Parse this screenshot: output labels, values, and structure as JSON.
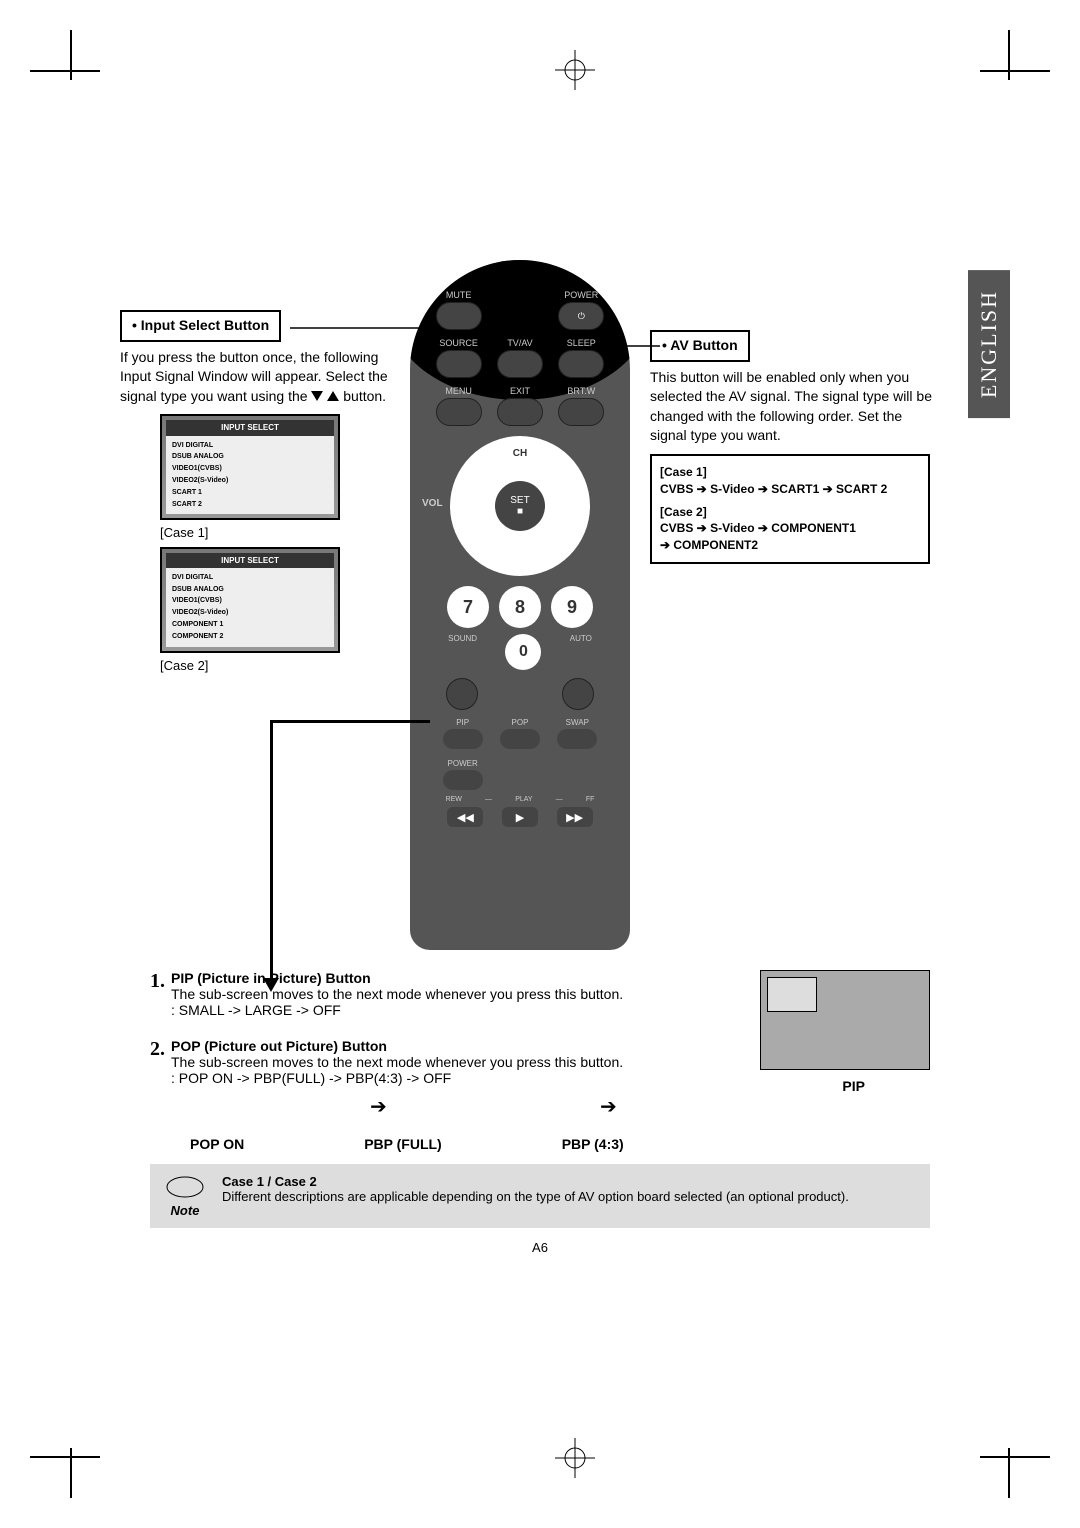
{
  "page": {
    "language_tab": "ENGLISH",
    "page_number": "A6"
  },
  "left_callout": {
    "title": "• Input Select Button",
    "body1": "If you press the button once, the following Input Signal Window will appear. Select the signal type you want using the",
    "body2": "button.",
    "case1_label": "[Case 1]",
    "case2_label": "[Case 2]",
    "osd_title": "INPUT SELECT",
    "osd1_items": [
      "DVI DIGITAL",
      "DSUB ANALOG",
      "VIDEO1(CVBS)",
      "VIDEO2(S-Video)",
      "SCART 1",
      "SCART 2"
    ],
    "osd2_items": [
      "DVI DIGITAL",
      "DSUB ANALOG",
      "VIDEO1(CVBS)",
      "VIDEO2(S-Video)",
      "COMPONENT 1",
      "COMPONENT 2"
    ]
  },
  "right_callout": {
    "title": "• AV Button",
    "body": "This button will be enabled only when you selected the AV signal. The signal type will be changed with the following order. Set the signal type you want.",
    "case1_label": "[Case 1]",
    "case1_seq": [
      "CVBS",
      "S-Video",
      "SCART1",
      "SCART 2"
    ],
    "case2_label": "[Case 2]",
    "case2_seq": [
      "CVBS",
      "S-Video",
      "COMPONENT1",
      "COMPONENT2"
    ]
  },
  "remote": {
    "row1": [
      "MUTE",
      "",
      "POWER"
    ],
    "row2": [
      "SOURCE",
      "TV/AV",
      "SLEEP"
    ],
    "row3": [
      "MENU",
      "EXIT",
      "BRT.W"
    ],
    "dpad_top": "CH",
    "dpad_center_top": "SET",
    "dpad_center_bot": "■",
    "dpad_left": "VOL",
    "keys": [
      "7",
      "8",
      "9",
      "0"
    ],
    "sound": "SOUND",
    "auto": "AUTO",
    "pip_row": [
      "PIP",
      "POP",
      "SWAP"
    ],
    "vcr_labels": [
      "REW",
      "PLAY",
      "FF"
    ],
    "power_lbl": "POWER"
  },
  "pip_section": {
    "item1_num": "1.",
    "item1_title": "PIP (Picture in Picture) Button",
    "item1_body": "The sub-screen moves to the next mode whenever you press this button.",
    "item1_seq": ": SMALL -> LARGE -> OFF",
    "item2_num": "2.",
    "item2_title": "POP (Picture out Picture) Button",
    "item2_body": "The sub-screen moves to the next mode whenever you press this button.",
    "item2_seq": ": POP ON -> PBP(FULL) -> PBP(4:3) -> OFF",
    "diagram_label": "PIP",
    "modes": [
      "POP ON",
      "PBP (FULL)",
      "PBP (4:3)"
    ]
  },
  "note": {
    "label": "Note",
    "title": "Case 1 / Case 2",
    "body": "Different descriptions are applicable depending on the type of AV option board selected (an optional product)."
  },
  "colors": {
    "remote_body": "#555555",
    "lang_tab_bg": "#555555",
    "note_bg": "#dddddd",
    "osd_grad_top": "#777777",
    "osd_grad_bot": "#999999"
  }
}
